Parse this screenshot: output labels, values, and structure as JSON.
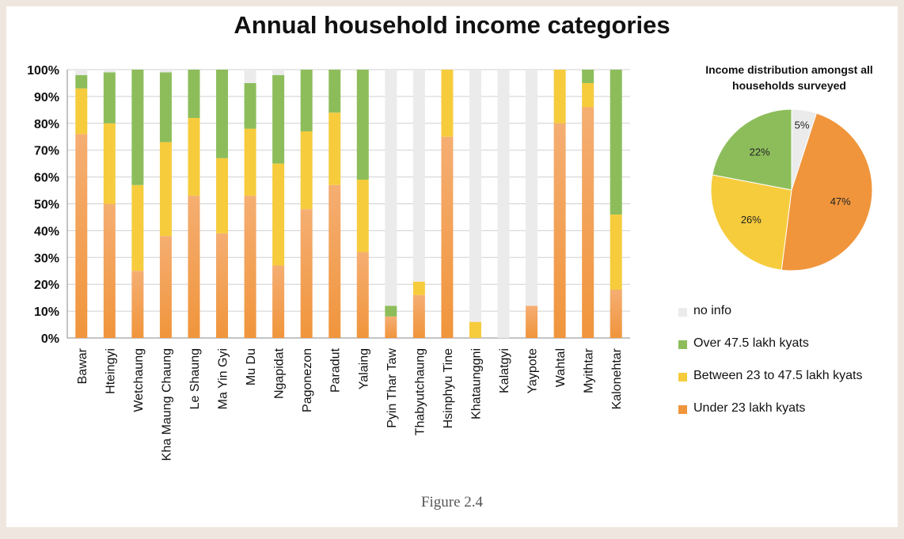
{
  "title": "Annual household income categories",
  "caption": "Figure 2.4",
  "colors": {
    "no_info": "#ebebeb",
    "over": "#8dbd5b",
    "between": "#f6cc3d",
    "under": "#f0953c",
    "under_light": "#f5ae72"
  },
  "legend": [
    {
      "key": "no_info",
      "label": "no info"
    },
    {
      "key": "over",
      "label": "Over 47.5 lakh kyats"
    },
    {
      "key": "between",
      "label": "Between 23 to 47.5 lakh kyats"
    },
    {
      "key": "under",
      "label": "Under 23 lakh kyats"
    }
  ],
  "chart_data": [
    {
      "type": "bar",
      "stacked": true,
      "title": "Annual household income categories",
      "categories": [
        "Bawar",
        "Hteingyi",
        "Wetchaung",
        "Kha Maung Chaung",
        "Le Shaung",
        "Ma Yin Gyi",
        "Mu Du",
        "Ngapidat",
        "Pagonezon",
        "Paradut",
        "Yalaing",
        "Pyin Thar Taw",
        "Thabyutchaung",
        "Hsinphyu Tine",
        "Khataunggni",
        "Kalatgyi",
        "Yaypote",
        "Wahtal",
        "Myithtar",
        "Kalonehtar"
      ],
      "series": [
        {
          "name": "Under 23 lakh kyats",
          "key": "under",
          "values": [
            76,
            50,
            25,
            38,
            53,
            39,
            53,
            27,
            48,
            57,
            32,
            8,
            16,
            75,
            0,
            0,
            12,
            80,
            86,
            18
          ]
        },
        {
          "name": "Between 23 to 47.5 lakh kyats",
          "key": "between",
          "values": [
            17,
            30,
            32,
            35,
            29,
            28,
            25,
            38,
            29,
            27,
            27,
            0,
            5,
            25,
            6,
            0,
            0,
            20,
            9,
            28
          ]
        },
        {
          "name": "Over 47.5 lakh kyats",
          "key": "over",
          "values": [
            5,
            19,
            43,
            26,
            18,
            33,
            17,
            33,
            23,
            16,
            41,
            4,
            0,
            0,
            0,
            0,
            0,
            0,
            5,
            54
          ]
        },
        {
          "name": "no info",
          "key": "no_info",
          "values": [
            2,
            1,
            0,
            1,
            0,
            0,
            5,
            2,
            0,
            0,
            0,
            88,
            79,
            0,
            94,
            100,
            88,
            0,
            0,
            0
          ]
        }
      ],
      "yticks": [
        "0%",
        "10%",
        "20%",
        "30%",
        "40%",
        "50%",
        "60%",
        "70%",
        "80%",
        "90%",
        "100%"
      ],
      "ylim": [
        0,
        100
      ],
      "grid": true
    },
    {
      "type": "pie",
      "title": "Income distribution amongst all households surveyed",
      "slices": [
        {
          "label": "no info",
          "key": "no_info",
          "value": 5,
          "text": "5%"
        },
        {
          "label": "Under 23 lakh kyats",
          "key": "under",
          "value": 47,
          "text": "47%"
        },
        {
          "label": "Between 23 to 47.5 lakh kyats",
          "key": "between",
          "value": 26,
          "text": "26%"
        },
        {
          "label": "Over 47.5 lakh kyats",
          "key": "over",
          "value": 22,
          "text": "22%"
        }
      ]
    }
  ]
}
